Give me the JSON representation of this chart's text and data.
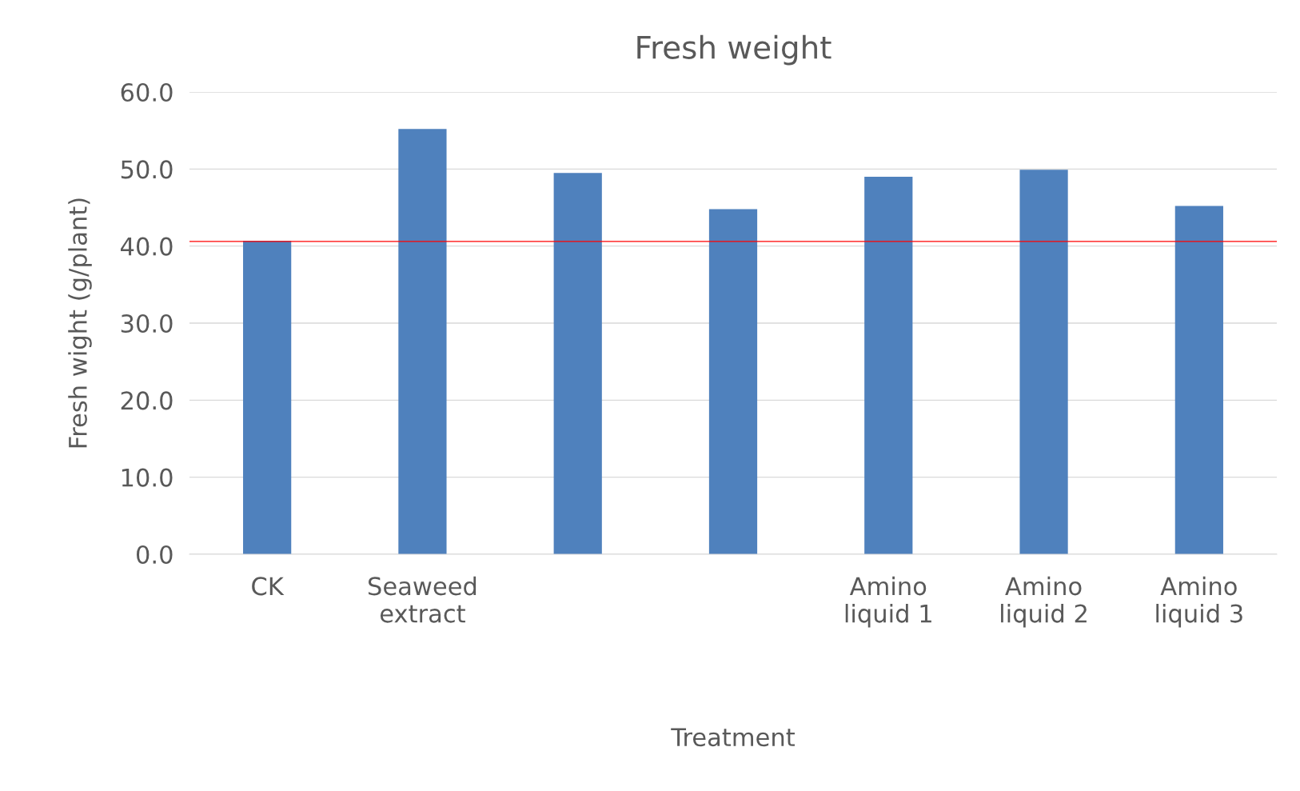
{
  "chart_data": {
    "type": "bar",
    "title": "Fresh weight",
    "xlabel": "Treatment",
    "ylabel": "Fresh wight (g/plant)",
    "categories": [
      "CK",
      "Seaweed\nextract",
      null,
      null,
      "Amino\nliquid 1",
      "Amino\nliquid 2",
      "Amino\nliquid 3"
    ],
    "values": [
      40.7,
      55.2,
      49.5,
      44.8,
      49.0,
      49.9,
      45.2
    ],
    "color": "#4f81bd",
    "ylim": [
      0,
      60
    ],
    "yticks": [
      {
        "value": 0,
        "label": "0.0"
      },
      {
        "value": 10,
        "label": "10.0"
      },
      {
        "value": 20,
        "label": "20.0"
      },
      {
        "value": 30,
        "label": "30.0"
      },
      {
        "value": 40,
        "label": "40.0"
      },
      {
        "value": 50,
        "label": "50.0"
      },
      {
        "value": 60,
        "label": "60.0"
      }
    ],
    "ref_lines": [
      {
        "axis": "y",
        "value": 40.6,
        "label": null,
        "color": "#ff0000"
      }
    ],
    "grid": "y"
  }
}
